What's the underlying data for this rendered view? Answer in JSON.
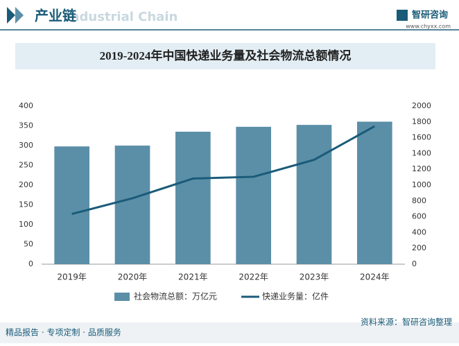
{
  "header": {
    "title": "产业链",
    "watermark": "Industrial Chain",
    "brand": "智研咨询",
    "url": "www.chyxx.com"
  },
  "footer": {
    "tagline": "精品报告 · 专项定制 · 品质服务",
    "source": "资料来源：智研咨询整理"
  },
  "chart_data": {
    "type": "bar-line",
    "title": "2019-2024年中国快递业务量及社会物流总额情况",
    "categories": [
      "2019年",
      "2020年",
      "2021年",
      "2022年",
      "2023年",
      "2024年"
    ],
    "series": [
      {
        "name": "社会物流总额：万亿元",
        "type": "bar",
        "color": "#5b8fa8",
        "values": [
          298,
          300.1,
          335.2,
          347.6,
          352.4,
          360.6
        ]
      },
      {
        "name": "快递业务量：亿件",
        "type": "line",
        "axis": "y2",
        "color": "#1a5b78",
        "values": [
          635.2,
          833.6,
          1083,
          1105.8,
          1320.7,
          1745
        ]
      }
    ],
    "ylim": [
      0,
      400
    ],
    "yticks": [
      0,
      50,
      100,
      150,
      200,
      250,
      300,
      350,
      400
    ],
    "y2lim": [
      0,
      2000
    ],
    "y2ticks": [
      0,
      200,
      400,
      600,
      800,
      1000,
      1200,
      1400,
      1600,
      1800,
      2000
    ],
    "grid": false
  }
}
